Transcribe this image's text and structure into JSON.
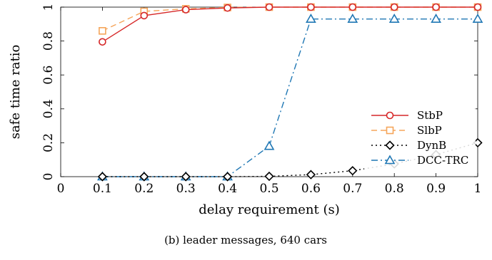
{
  "chart_data": {
    "type": "line",
    "caption": "(b) leader messages, 640 cars",
    "xlabel": "delay requirement (s)",
    "ylabel": "safe time ratio",
    "xlim": [
      0,
      1
    ],
    "ylim": [
      0,
      1
    ],
    "xticks": [
      "0",
      "0.1",
      "0.2",
      "0.3",
      "0.4",
      "0.5",
      "0.6",
      "0.7",
      "0.8",
      "0.9",
      "1"
    ],
    "yticks": [
      "0",
      "0.2",
      "0.4",
      "0.6",
      "0.8",
      "1"
    ],
    "grid": false,
    "legend_position": "lower-right",
    "series": [
      {
        "name": "StbP",
        "color": "#d62728",
        "dash": "solid",
        "marker": "circle",
        "x": [
          0.1,
          0.2,
          0.3,
          0.4,
          0.5,
          0.6,
          0.7,
          0.8,
          0.9,
          1.0
        ],
        "y": [
          0.795,
          0.95,
          0.985,
          0.995,
          1.0,
          1.0,
          1.0,
          1.0,
          1.0,
          1.0
        ]
      },
      {
        "name": "SlbP",
        "color": "#f5a55a",
        "dash": "dashed",
        "marker": "square",
        "x": [
          0.1,
          0.2,
          0.3,
          0.4,
          0.5,
          0.6,
          0.7,
          0.8,
          0.9,
          1.0
        ],
        "y": [
          0.86,
          0.975,
          0.99,
          0.998,
          1.0,
          1.0,
          1.0,
          1.0,
          1.0,
          1.0
        ]
      },
      {
        "name": "DynB",
        "color": "#000000",
        "dash": "dotted",
        "marker": "diamond",
        "x": [
          0.1,
          0.2,
          0.3,
          0.4,
          0.5,
          0.6,
          0.7,
          0.8,
          0.9,
          1.0
        ],
        "y": [
          0.0,
          0.0,
          0.0,
          0.0,
          0.002,
          0.012,
          0.035,
          0.075,
          0.13,
          0.2
        ]
      },
      {
        "name": "DCC-TRC",
        "color": "#1f77b4",
        "dash": "dashdot",
        "marker": "triangle",
        "x": [
          0.1,
          0.2,
          0.3,
          0.4,
          0.5,
          0.6,
          0.7,
          0.8,
          0.9,
          1.0
        ],
        "y": [
          0.0,
          0.0,
          0.0,
          0.0,
          0.18,
          0.93,
          0.93,
          0.93,
          0.93,
          0.93
        ]
      }
    ]
  }
}
